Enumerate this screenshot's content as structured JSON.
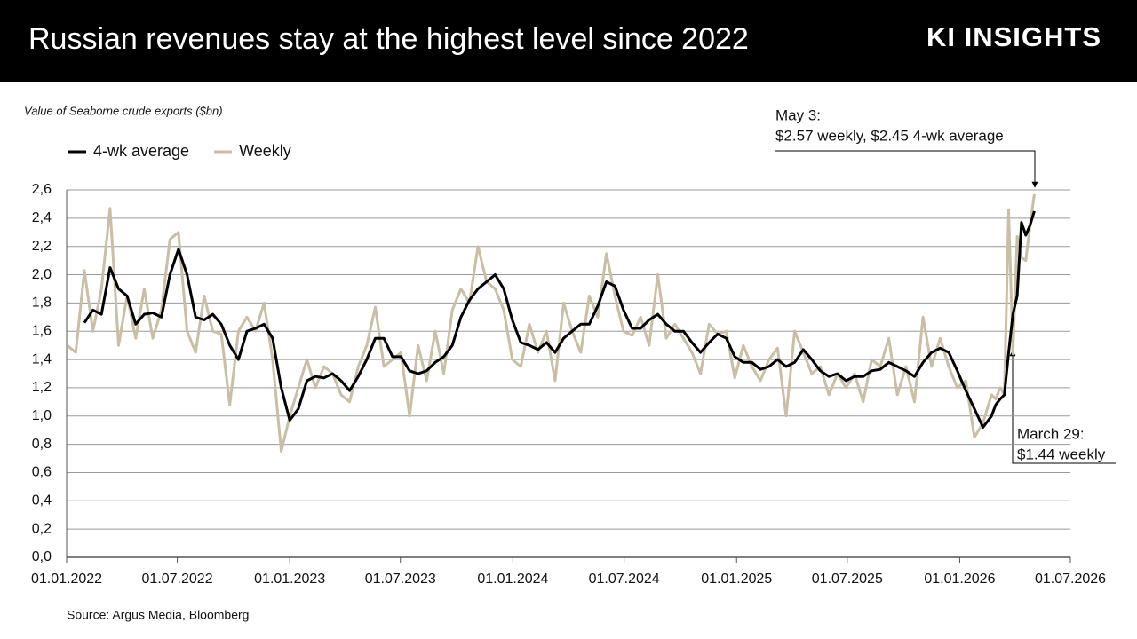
{
  "header": {
    "title": "Russian revenues stay at the highest level since 2022",
    "brand": "KI INSIGHTS"
  },
  "chart_data": {
    "type": "line",
    "subtitle": "Value of Seaborne crude exports ($bn)",
    "source": "Source: Argus Media, Bloomberg",
    "annotations": [
      "May 3:",
      "$2.57 weekly, $2.45 4-wk average",
      "March 29:",
      "$1.44 weekly"
    ],
    "x": [
      "2022-01-02",
      "2022-01-16",
      "2022-01-30",
      "2022-02-13",
      "2022-02-27",
      "2022-03-13",
      "2022-03-27",
      "2022-04-10",
      "2022-04-24",
      "2022-05-08",
      "2022-05-22",
      "2022-06-05",
      "2022-06-19",
      "2022-07-03",
      "2022-07-17",
      "2022-07-31",
      "2022-08-14",
      "2022-08-28",
      "2022-09-11",
      "2022-09-25",
      "2022-10-09",
      "2022-10-23",
      "2022-11-06",
      "2022-11-20",
      "2022-12-04",
      "2022-12-18",
      "2023-01-01",
      "2023-01-15",
      "2023-01-29",
      "2023-02-12",
      "2023-02-26",
      "2023-03-12",
      "2023-03-26",
      "2023-04-09",
      "2023-04-23",
      "2023-05-07",
      "2023-05-21",
      "2023-06-04",
      "2023-06-18",
      "2023-07-02",
      "2023-07-16",
      "2023-07-30",
      "2023-08-13",
      "2023-08-27",
      "2023-09-10",
      "2023-09-24",
      "2023-10-08",
      "2023-10-22",
      "2023-11-05",
      "2023-11-19",
      "2023-12-03",
      "2023-12-17",
      "2023-12-31",
      "2024-01-14",
      "2024-01-28",
      "2024-02-11",
      "2024-02-25",
      "2024-03-10",
      "2024-03-24",
      "2024-04-07",
      "2024-04-21",
      "2024-05-05",
      "2024-05-19",
      "2024-06-02",
      "2024-06-16",
      "2024-06-30",
      "2024-07-14",
      "2024-07-28",
      "2024-08-11",
      "2024-08-25",
      "2024-09-08",
      "2024-09-22",
      "2024-10-06",
      "2024-10-20",
      "2024-11-03",
      "2024-11-17",
      "2024-12-01",
      "2024-12-15",
      "2024-12-29",
      "2025-01-12",
      "2025-01-26",
      "2025-02-09",
      "2025-02-23",
      "2025-03-09",
      "2025-03-23",
      "2025-04-06",
      "2025-04-20",
      "2025-05-04",
      "2025-05-18",
      "2025-06-01",
      "2025-06-15",
      "2025-06-29",
      "2025-07-13",
      "2025-07-27",
      "2025-08-10",
      "2025-08-24",
      "2025-09-07",
      "2025-09-21",
      "2025-10-05",
      "2025-10-19",
      "2025-11-02",
      "2025-11-16",
      "2025-11-30",
      "2025-12-14",
      "2025-12-28",
      "2026-01-11",
      "2026-01-25",
      "2026-02-08",
      "2026-02-22",
      "2026-03-01",
      "2026-03-08",
      "2026-03-15",
      "2026-03-22",
      "2026-03-29",
      "2026-04-05",
      "2026-04-12",
      "2026-04-19",
      "2026-04-26",
      "2026-05-03"
    ],
    "series": [
      {
        "name": "Weekly",
        "color": "#c9bea6",
        "values": [
          1.5,
          1.45,
          2.03,
          1.6,
          1.9,
          2.47,
          1.5,
          1.85,
          1.55,
          1.9,
          1.55,
          1.75,
          2.25,
          2.3,
          1.6,
          1.45,
          1.85,
          1.6,
          1.58,
          1.08,
          1.6,
          1.7,
          1.6,
          1.8,
          1.4,
          0.75,
          1.0,
          1.2,
          1.4,
          1.2,
          1.35,
          1.3,
          1.15,
          1.1,
          1.35,
          1.5,
          1.77,
          1.35,
          1.4,
          1.45,
          1.0,
          1.5,
          1.25,
          1.6,
          1.3,
          1.75,
          1.9,
          1.8,
          2.2,
          1.95,
          1.9,
          1.75,
          1.4,
          1.35,
          1.65,
          1.45,
          1.6,
          1.25,
          1.8,
          1.6,
          1.45,
          1.85,
          1.7,
          2.15,
          1.85,
          1.6,
          1.57,
          1.7,
          1.5,
          2.0,
          1.55,
          1.65,
          1.55,
          1.45,
          1.3,
          1.65,
          1.58,
          1.6,
          1.27,
          1.5,
          1.35,
          1.25,
          1.4,
          1.48,
          1.0,
          1.6,
          1.45,
          1.3,
          1.35,
          1.15,
          1.3,
          1.2,
          1.3,
          1.1,
          1.4,
          1.35,
          1.55,
          1.15,
          1.35,
          1.1,
          1.7,
          1.35,
          1.55,
          1.35,
          1.2,
          1.25,
          0.85,
          0.95,
          1.15,
          1.12,
          1.2,
          1.15,
          2.46,
          1.44,
          2.27,
          2.12,
          2.1,
          2.35,
          2.57
        ]
      },
      {
        "name": "4-wk average",
        "color": "#000000",
        "values": [
          null,
          null,
          1.66,
          1.75,
          1.72,
          2.05,
          1.9,
          1.85,
          1.65,
          1.72,
          1.73,
          1.7,
          2.0,
          2.18,
          2.0,
          1.7,
          1.68,
          1.72,
          1.65,
          1.5,
          1.4,
          1.6,
          1.62,
          1.65,
          1.55,
          1.2,
          0.97,
          1.05,
          1.25,
          1.28,
          1.27,
          1.3,
          1.25,
          1.18,
          1.28,
          1.4,
          1.55,
          1.55,
          1.42,
          1.42,
          1.32,
          1.3,
          1.32,
          1.38,
          1.42,
          1.5,
          1.7,
          1.82,
          1.9,
          1.95,
          2.0,
          1.9,
          1.68,
          1.52,
          1.5,
          1.47,
          1.52,
          1.45,
          1.55,
          1.6,
          1.65,
          1.65,
          1.78,
          1.95,
          1.92,
          1.75,
          1.62,
          1.62,
          1.68,
          1.72,
          1.65,
          1.6,
          1.6,
          1.52,
          1.45,
          1.52,
          1.58,
          1.55,
          1.42,
          1.38,
          1.38,
          1.33,
          1.35,
          1.4,
          1.35,
          1.38,
          1.47,
          1.4,
          1.32,
          1.28,
          1.3,
          1.25,
          1.28,
          1.28,
          1.32,
          1.33,
          1.38,
          1.35,
          1.32,
          1.28,
          1.38,
          1.45,
          1.48,
          1.45,
          1.32,
          1.18,
          1.05,
          0.92,
          1.0,
          1.08,
          1.12,
          1.15,
          1.45,
          1.72,
          1.85,
          2.37,
          2.28,
          2.35,
          2.45
        ]
      }
    ],
    "legend_order": [
      1,
      0
    ],
    "xlim": [
      "2022-01-01",
      "2026-07-01"
    ],
    "xticks": [
      {
        "value": "2022-01-01",
        "label": "01.01.2022"
      },
      {
        "value": "2022-07-01",
        "label": "01.07.2022"
      },
      {
        "value": "2023-01-01",
        "label": "01.01.2023"
      },
      {
        "value": "2023-07-01",
        "label": "01.07.2023"
      },
      {
        "value": "2024-01-01",
        "label": "01.01.2024"
      },
      {
        "value": "2024-07-01",
        "label": "01.07.2024"
      },
      {
        "value": "2025-01-01",
        "label": "01.01.2025"
      },
      {
        "value": "2025-07-01",
        "label": "01.07.2025"
      },
      {
        "value": "2026-01-01",
        "label": "01.01.2026"
      },
      {
        "value": "2026-07-01",
        "label": "01.07.2026"
      }
    ],
    "ylim": [
      0,
      2.6
    ],
    "yticks": [
      {
        "value": 0,
        "label": "0,0"
      },
      {
        "value": 0.2,
        "label": "0,2"
      },
      {
        "value": 0.4,
        "label": "0,4"
      },
      {
        "value": 0.6,
        "label": "0,6"
      },
      {
        "value": 0.8,
        "label": "0,8"
      },
      {
        "value": 1.0,
        "label": "1,0"
      },
      {
        "value": 1.2,
        "label": "1,2"
      },
      {
        "value": 1.4,
        "label": "1,4"
      },
      {
        "value": 1.6,
        "label": "1,6"
      },
      {
        "value": 1.8,
        "label": "1,8"
      },
      {
        "value": 2.0,
        "label": "2,0"
      },
      {
        "value": 2.2,
        "label": "2,2"
      },
      {
        "value": 2.4,
        "label": "2,4"
      },
      {
        "value": 2.6,
        "label": "2,6"
      }
    ],
    "grid": true
  }
}
